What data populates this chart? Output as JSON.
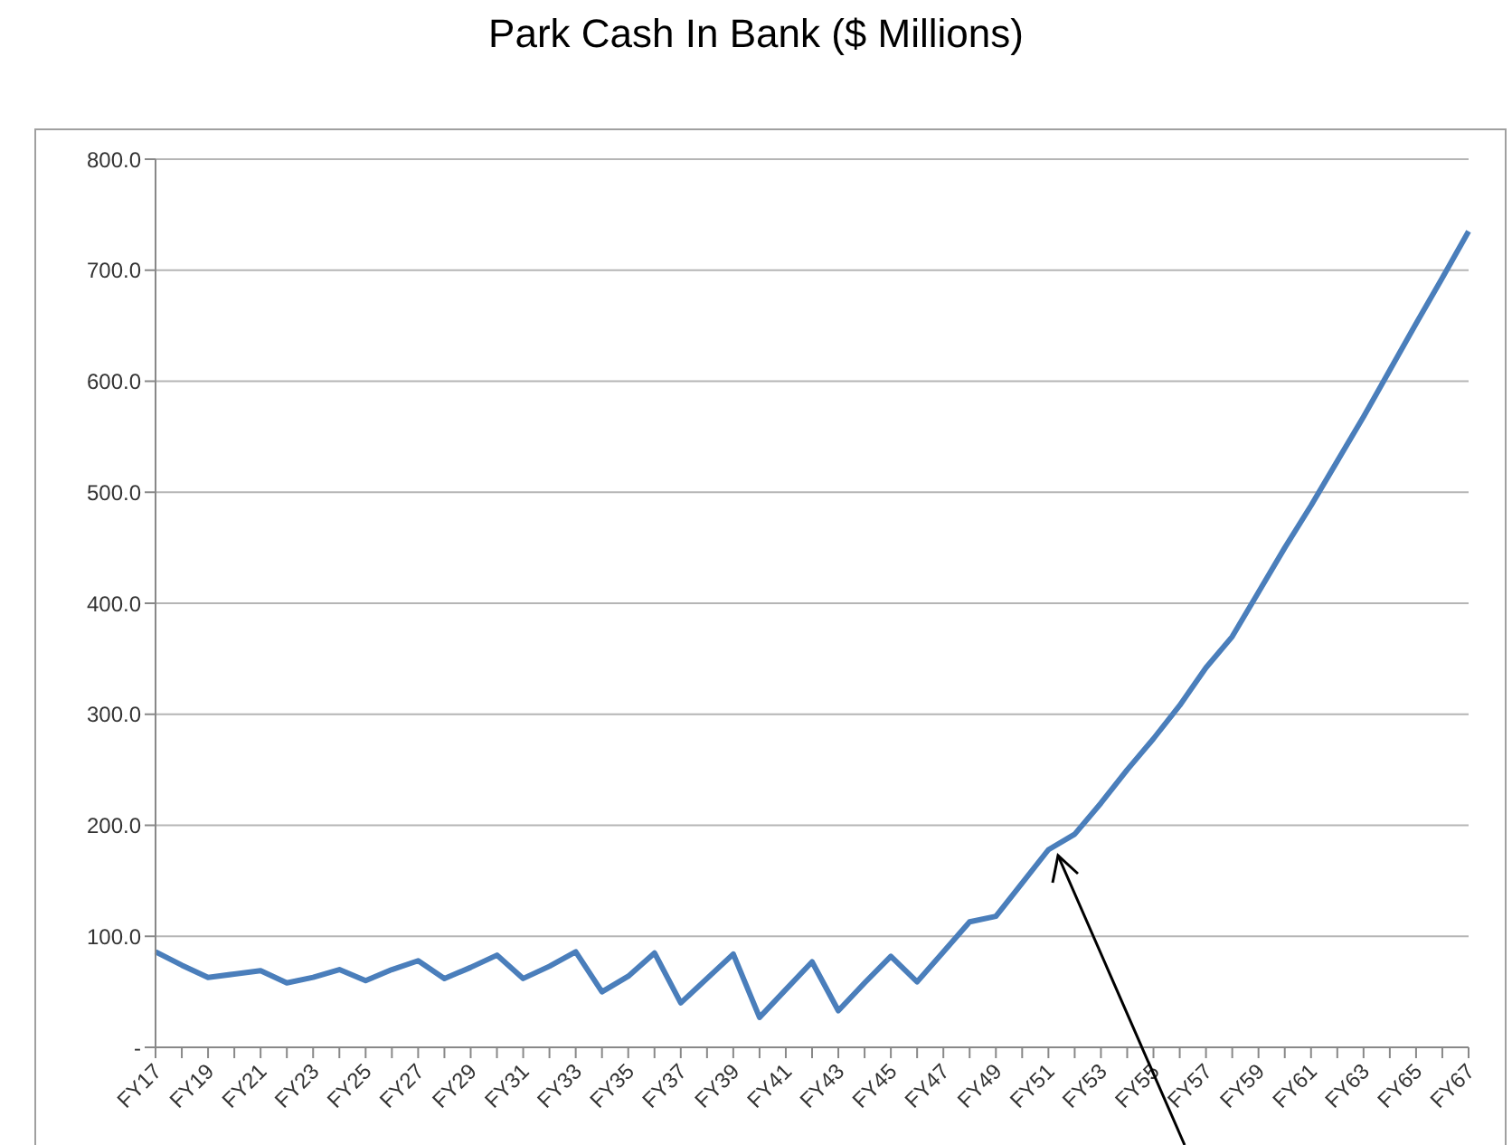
{
  "chart_data": {
    "type": "line",
    "title": "Park Cash In Bank ($ Millions)",
    "categories": [
      "FY17",
      null,
      "FY19",
      null,
      "FY21",
      null,
      "FY23",
      null,
      "FY25",
      null,
      "FY27",
      null,
      "FY29",
      null,
      "FY31",
      null,
      "FY33",
      null,
      "FY35",
      null,
      "FY37",
      null,
      "FY39",
      null,
      "FY41",
      null,
      "FY43",
      null,
      "FY45",
      null,
      "FY47",
      null,
      "FY49",
      null,
      "FY51",
      null,
      "FY53",
      null,
      "FY55",
      null,
      "FY57",
      null,
      "FY59",
      null,
      "FY61",
      null,
      "FY63",
      null,
      "FY65",
      null,
      "FY67"
    ],
    "series": [
      {
        "color": "#4a7ebb",
        "values": [
          86,
          74,
          63,
          66,
          69,
          58,
          63,
          70,
          60,
          70,
          78,
          62,
          72,
          83,
          62,
          73,
          86,
          50,
          64,
          85,
          40,
          62,
          84,
          27,
          52,
          77,
          33,
          58,
          82,
          59,
          86,
          113,
          118,
          148,
          178,
          192,
          220,
          250,
          278,
          308,
          342,
          370,
          410,
          450,
          488,
          528,
          568,
          610,
          652,
          693,
          735
        ]
      }
    ],
    "ylim": [
      0,
      800
    ],
    "yticks": [
      {
        "value": 0,
        "label": "-"
      },
      {
        "value": 100,
        "label": "100.0"
      },
      {
        "value": 200,
        "label": "200.0"
      },
      {
        "value": 300,
        "label": "300.0"
      },
      {
        "value": 400,
        "label": "400.0"
      },
      {
        "value": 500,
        "label": "500.0"
      },
      {
        "value": 600,
        "label": "600.0"
      },
      {
        "value": 700,
        "label": "700.0"
      },
      {
        "value": 800,
        "label": "800.0"
      }
    ],
    "grid": "y",
    "legend": false,
    "marker": "none",
    "line_style": "solid"
  }
}
